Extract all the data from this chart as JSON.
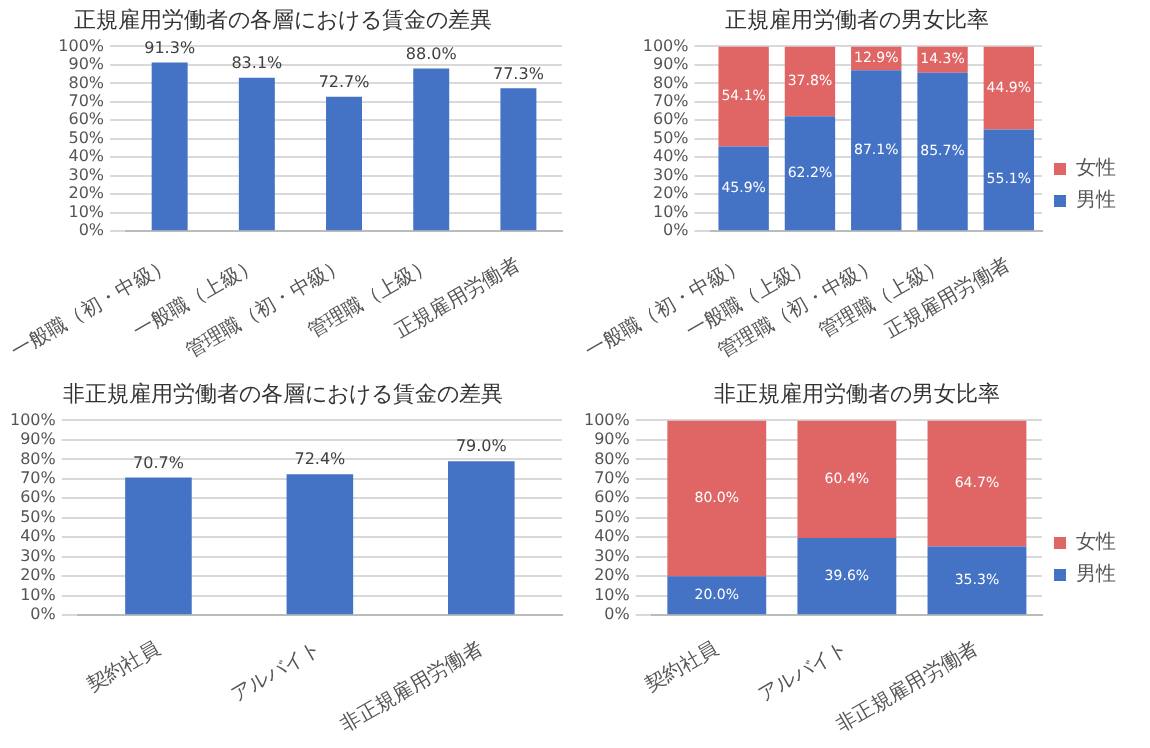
{
  "chart_data": [
    {
      "type": "bar",
      "title": "正規雇用労働者の各層における賃金の差異",
      "categories": [
        "一般職（初・中級）",
        "一般職（上級）",
        "管理職（初・中級）",
        "管理職（上級）",
        "正規雇用労働者"
      ],
      "values": [
        91.3,
        83.1,
        72.7,
        88.0,
        77.3
      ],
      "value_labels": [
        "91.3%",
        "83.1%",
        "72.7%",
        "88.0%",
        "77.3%"
      ],
      "color": "#4472c4",
      "ylim": [
        0,
        100
      ],
      "yticks": [
        {
          "value": 0,
          "label": "0%"
        },
        {
          "value": 10,
          "label": "10%"
        },
        {
          "value": 20,
          "label": "20%"
        },
        {
          "value": 30,
          "label": "30%"
        },
        {
          "value": 40,
          "label": "40%"
        },
        {
          "value": 50,
          "label": "50%"
        },
        {
          "value": 60,
          "label": "60%"
        },
        {
          "value": 70,
          "label": "70%"
        },
        {
          "value": 80,
          "label": "80%"
        },
        {
          "value": 90,
          "label": "90%"
        },
        {
          "value": 100,
          "label": "100%"
        }
      ],
      "grid": "y"
    },
    {
      "type": "bar",
      "title": "正規雇用労働者の男女比率",
      "stacked": true,
      "categories": [
        "一般職（初・中級）",
        "一般職（上級）",
        "管理職（初・中級）",
        "管理職（上級）",
        "正規雇用労働者"
      ],
      "series": [
        {
          "name": "男性",
          "color": "#4472c4",
          "values": [
            45.9,
            62.2,
            87.1,
            85.7,
            55.1
          ],
          "value_labels": [
            "45.9%",
            "62.2%",
            "87.1%",
            "85.7%",
            "55.1%"
          ]
        },
        {
          "name": "女性",
          "color": "#e06666",
          "values": [
            54.1,
            37.8,
            12.9,
            14.3,
            44.9
          ],
          "value_labels": [
            "54.1%",
            "37.8%",
            "12.9%",
            "14.3%",
            "44.9%"
          ]
        }
      ],
      "ylim": [
        0,
        100
      ],
      "yticks": [
        {
          "value": 0,
          "label": "0%"
        },
        {
          "value": 10,
          "label": "10%"
        },
        {
          "value": 20,
          "label": "20%"
        },
        {
          "value": 30,
          "label": "30%"
        },
        {
          "value": 40,
          "label": "40%"
        },
        {
          "value": 50,
          "label": "50%"
        },
        {
          "value": 60,
          "label": "60%"
        },
        {
          "value": 70,
          "label": "70%"
        },
        {
          "value": 80,
          "label": "80%"
        },
        {
          "value": 90,
          "label": "90%"
        },
        {
          "value": 100,
          "label": "100%"
        }
      ],
      "grid": "y",
      "legend": "right"
    },
    {
      "type": "bar",
      "title": "非正規雇用労働者の各層における賃金の差異",
      "categories": [
        "契約社員",
        "アルバイト",
        "非正規雇用労働者"
      ],
      "values": [
        70.7,
        72.4,
        79.0
      ],
      "value_labels": [
        "70.7%",
        "72.4%",
        "79.0%"
      ],
      "color": "#4472c4",
      "ylim": [
        0,
        100
      ],
      "yticks": [
        {
          "value": 0,
          "label": "0%"
        },
        {
          "value": 10,
          "label": "10%"
        },
        {
          "value": 20,
          "label": "20%"
        },
        {
          "value": 30,
          "label": "30%"
        },
        {
          "value": 40,
          "label": "40%"
        },
        {
          "value": 50,
          "label": "50%"
        },
        {
          "value": 60,
          "label": "60%"
        },
        {
          "value": 70,
          "label": "70%"
        },
        {
          "value": 80,
          "label": "80%"
        },
        {
          "value": 90,
          "label": "90%"
        },
        {
          "value": 100,
          "label": "100%"
        }
      ],
      "grid": "y"
    },
    {
      "type": "bar",
      "title": "非正規雇用労働者の男女比率",
      "stacked": true,
      "categories": [
        "契約社員",
        "アルバイト",
        "非正規雇用労働者"
      ],
      "series": [
        {
          "name": "男性",
          "color": "#4472c4",
          "values": [
            20.0,
            39.6,
            35.3
          ],
          "value_labels": [
            "20.0%",
            "39.6%",
            "35.3%"
          ]
        },
        {
          "name": "女性",
          "color": "#e06666",
          "values": [
            80.0,
            60.4,
            64.7
          ],
          "value_labels": [
            "80.0%",
            "60.4%",
            "64.7%"
          ]
        }
      ],
      "ylim": [
        0,
        100
      ],
      "yticks": [
        {
          "value": 0,
          "label": "0%"
        },
        {
          "value": 10,
          "label": "10%"
        },
        {
          "value": 20,
          "label": "20%"
        },
        {
          "value": 30,
          "label": "30%"
        },
        {
          "value": 40,
          "label": "40%"
        },
        {
          "value": 50,
          "label": "50%"
        },
        {
          "value": 60,
          "label": "60%"
        },
        {
          "value": 70,
          "label": "70%"
        },
        {
          "value": 80,
          "label": "80%"
        },
        {
          "value": 90,
          "label": "90%"
        },
        {
          "value": 100,
          "label": "100%"
        }
      ],
      "grid": "y",
      "legend": "right"
    }
  ]
}
